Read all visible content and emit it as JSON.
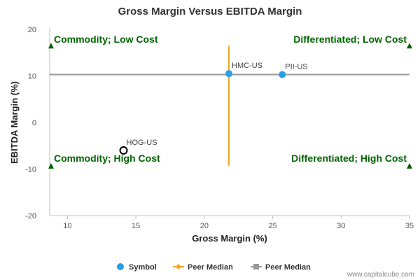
{
  "chart_data": {
    "type": "scatter",
    "title": "Gross Margin Versus EBITDA Margin",
    "xlabel": "Gross Margin (%)",
    "ylabel": "EBITDA Margin (%)",
    "xlim": [
      8.7,
      35
    ],
    "ylim": [
      -20,
      20
    ],
    "xticks": [
      10,
      15,
      20,
      25,
      30,
      35
    ],
    "yticks": [
      -20,
      -10,
      0,
      10,
      20
    ],
    "grid": false,
    "points": [
      {
        "label": "HMC-US",
        "x": 21.8,
        "y": 10.5,
        "style": "filled",
        "color": "#2a9fe2"
      },
      {
        "label": "PII-US",
        "x": 25.7,
        "y": 10.3,
        "style": "filled",
        "color": "#2a9fe2"
      },
      {
        "label": "HOG-US",
        "x": 14.1,
        "y": -6.0,
        "style": "hollow",
        "color": "#000000"
      }
    ],
    "peer_median_x": {
      "name": "Peer Median",
      "x": 21.8,
      "y_range": [
        -9.3,
        16.5
      ],
      "color": "#f5a623"
    },
    "peer_median_y": {
      "name": "Peer Median",
      "y": 10.3,
      "x_range": [
        8.7,
        35
      ],
      "color": "#999999"
    },
    "quadrants": [
      {
        "text": "Commodity; Low Cost",
        "position": "top-left"
      },
      {
        "text": "Differentiated; Low Cost",
        "position": "top-right"
      },
      {
        "text": "Commodity; High Cost",
        "position": "bottom-left"
      },
      {
        "text": "Differentiated; High Cost",
        "position": "bottom-right"
      }
    ],
    "quadrant_color": "#006400",
    "legend": {
      "placement": "bottom",
      "items": [
        {
          "name": "Symbol",
          "marker": "circle",
          "color": "#2a9fe2"
        },
        {
          "name": "Peer Median",
          "marker": "diamond-line",
          "color": "#f5a623"
        },
        {
          "name": "Peer Median",
          "marker": "square-line",
          "color": "#999999"
        }
      ]
    },
    "credit": "www.capitalcube.com"
  }
}
